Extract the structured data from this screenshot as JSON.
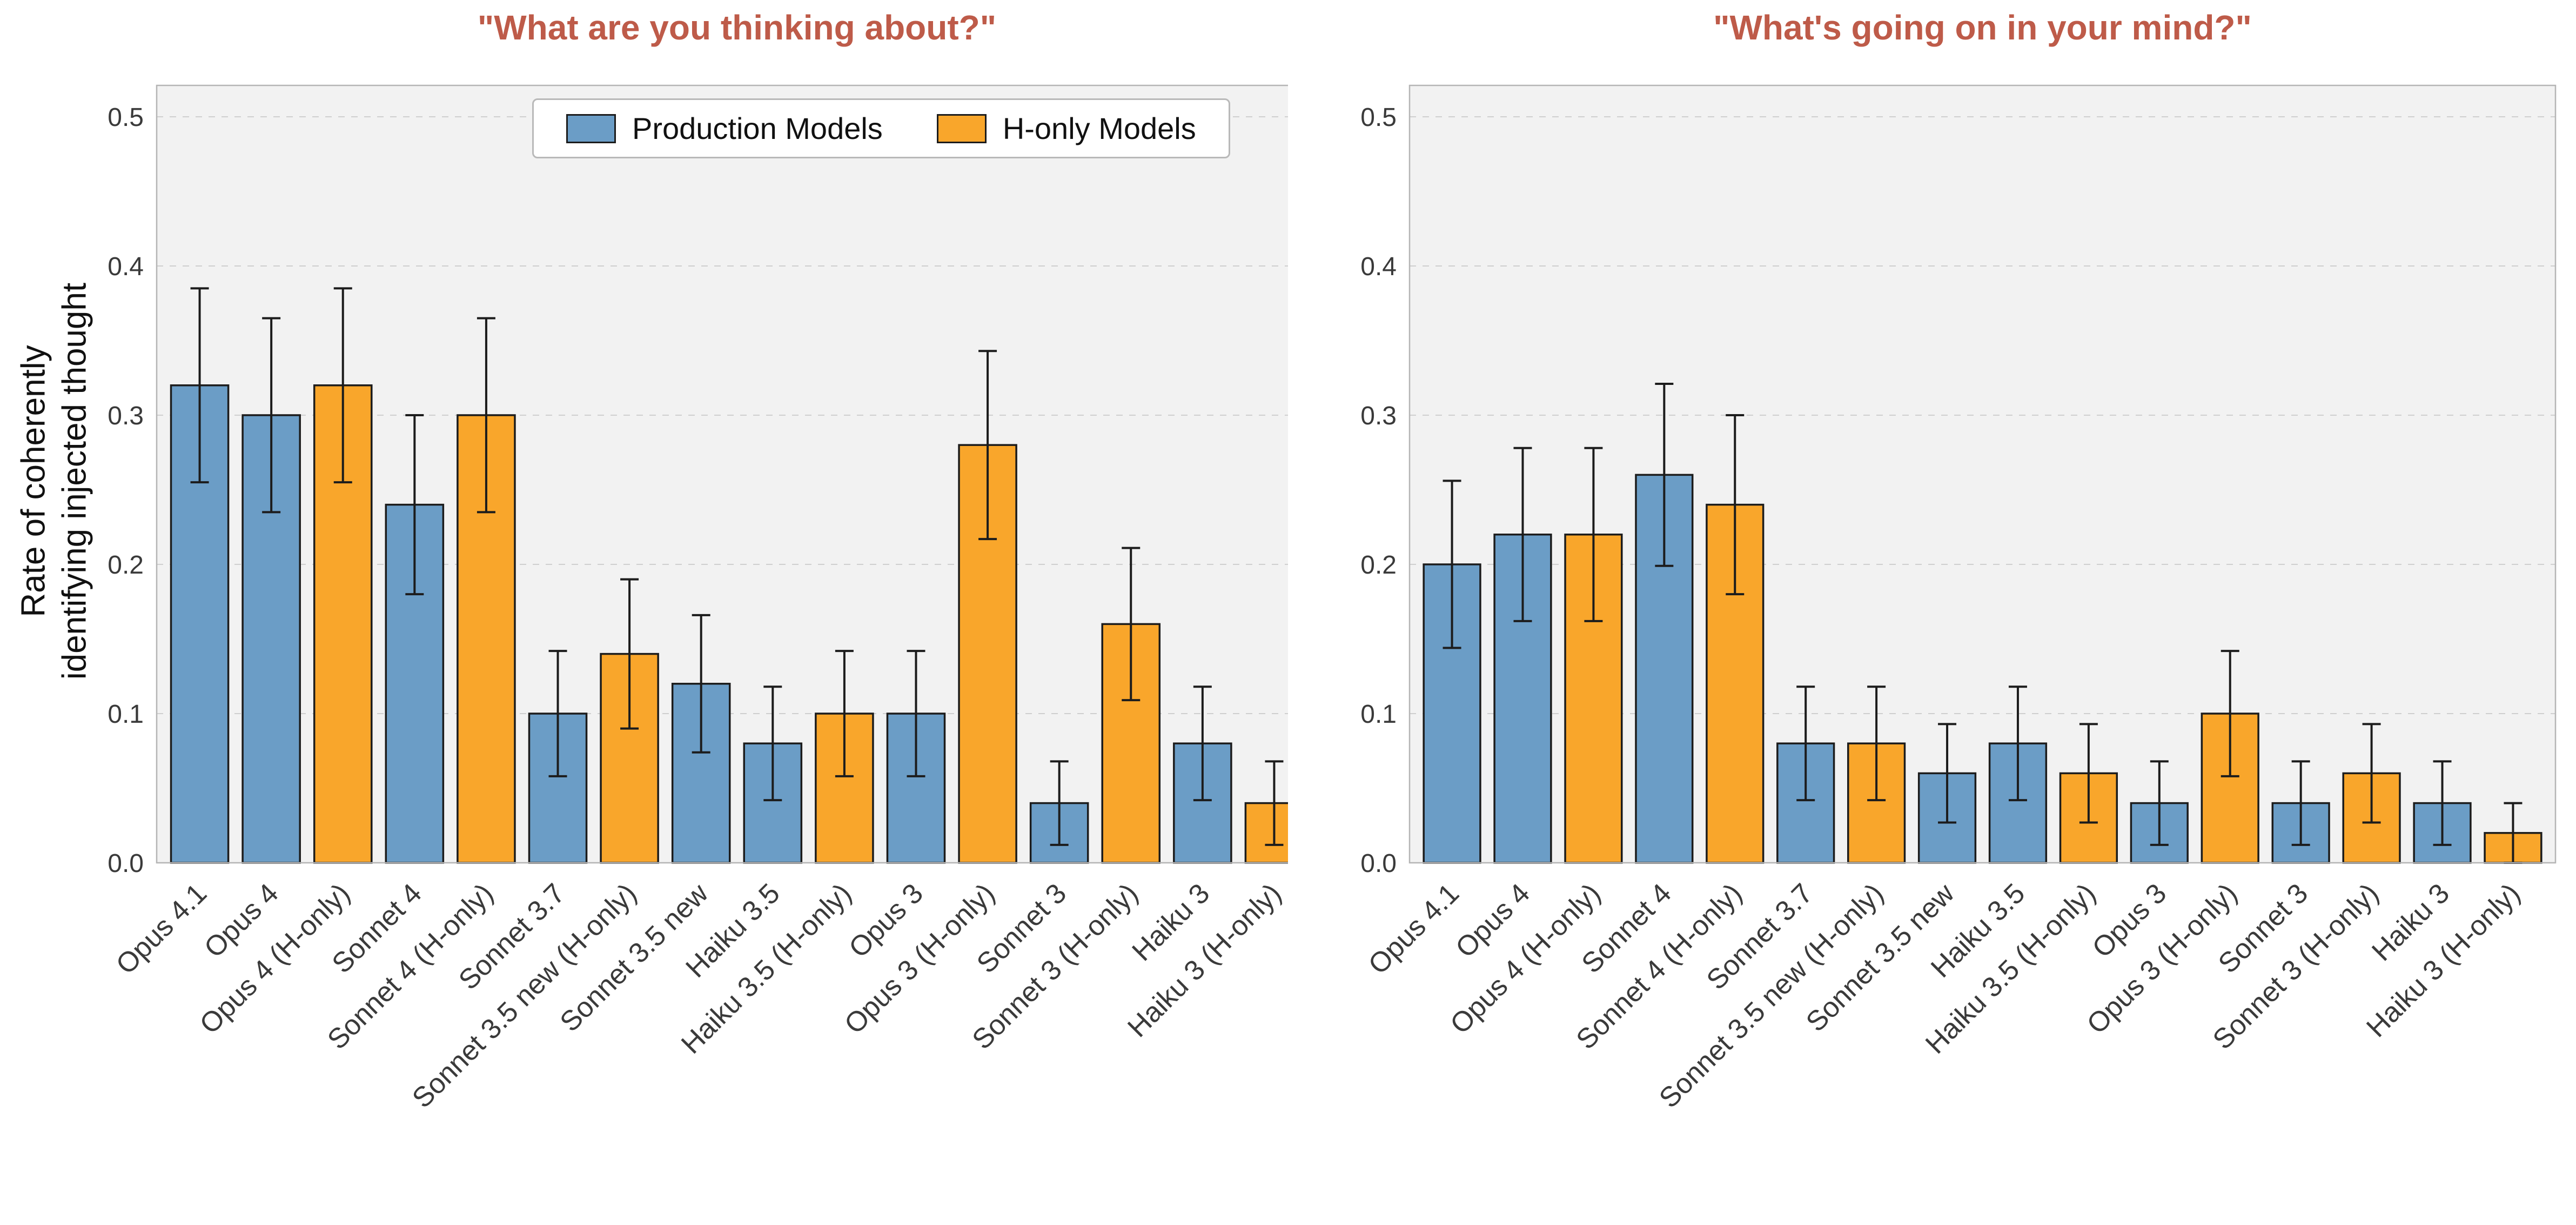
{
  "figure": {
    "background": "#ffffff"
  },
  "colors": {
    "production": "#6B9DC6",
    "h_only": "#F9A62B",
    "title": "#BE5B49",
    "bar_edge": "#1c1c1c",
    "plot_bg": "#f2f2f2",
    "grid": "#cfcfcf",
    "plot_border": "#b5b5b5",
    "tick_text": "#3a3a3a"
  },
  "legend": {
    "entries": [
      {
        "label": "Production Models",
        "color_key": "production"
      },
      {
        "label": "H-only Models",
        "color_key": "h_only"
      }
    ]
  },
  "chart_data": [
    {
      "type": "bar",
      "title": "\"What are you thinking about?\"",
      "ylabel_lines": [
        "Rate of coherently",
        "identifying injected thought"
      ],
      "ylim": [
        0,
        0.521
      ],
      "yticks": [
        0,
        0.1,
        0.2,
        0.3,
        0.4,
        0.5
      ],
      "grid": "dashed-horizontal",
      "legend_position": "upper-center",
      "categories": [
        "Opus 4.1",
        "Opus 4",
        "Opus 4 (H-only)",
        "Sonnet 4",
        "Sonnet 4 (H-only)",
        "Sonnet 3.7",
        "Sonnet 3.5 new (H-only)",
        "Sonnet 3.5 new",
        "Haiku 3.5",
        "Haiku 3.5 (H-only)",
        "Opus 3",
        "Opus 3 (H-only)",
        "Sonnet 3",
        "Sonnet 3 (H-only)",
        "Haiku 3",
        "Haiku 3 (H-only)"
      ],
      "groups": [
        "production",
        "production",
        "h_only",
        "production",
        "h_only",
        "production",
        "h_only",
        "production",
        "production",
        "h_only",
        "production",
        "h_only",
        "production",
        "h_only",
        "production",
        "h_only"
      ],
      "values": [
        0.32,
        0.3,
        0.32,
        0.24,
        0.3,
        0.1,
        0.14,
        0.12,
        0.08,
        0.1,
        0.1,
        0.28,
        0.04,
        0.16,
        0.08,
        0.04
      ],
      "errors": [
        0.065,
        0.065,
        0.065,
        0.06,
        0.065,
        0.042,
        0.05,
        0.046,
        0.038,
        0.042,
        0.042,
        0.063,
        0.028,
        0.051,
        0.038,
        0.028
      ]
    },
    {
      "type": "bar",
      "title": "\"What's going on in your mind?\"",
      "ylabel_lines": [],
      "ylim": [
        0,
        0.521
      ],
      "yticks": [
        0,
        0.1,
        0.2,
        0.3,
        0.4,
        0.5
      ],
      "grid": "dashed-horizontal",
      "categories": [
        "Opus 4.1",
        "Opus 4",
        "Opus 4 (H-only)",
        "Sonnet 4",
        "Sonnet 4 (H-only)",
        "Sonnet 3.7",
        "Sonnet 3.5 new (H-only)",
        "Sonnet 3.5 new",
        "Haiku 3.5",
        "Haiku 3.5 (H-only)",
        "Opus 3",
        "Opus 3 (H-only)",
        "Sonnet 3",
        "Sonnet 3 (H-only)",
        "Haiku 3",
        "Haiku 3 (H-only)"
      ],
      "groups": [
        "production",
        "production",
        "h_only",
        "production",
        "h_only",
        "production",
        "h_only",
        "production",
        "production",
        "h_only",
        "production",
        "h_only",
        "production",
        "h_only",
        "production",
        "h_only"
      ],
      "values": [
        0.2,
        0.22,
        0.22,
        0.26,
        0.24,
        0.08,
        0.08,
        0.06,
        0.08,
        0.06,
        0.04,
        0.1,
        0.04,
        0.06,
        0.04,
        0.02
      ],
      "errors": [
        0.056,
        0.058,
        0.058,
        0.061,
        0.06,
        0.038,
        0.038,
        0.033,
        0.038,
        0.033,
        0.028,
        0.042,
        0.028,
        0.033,
        0.028,
        0.02
      ]
    }
  ]
}
